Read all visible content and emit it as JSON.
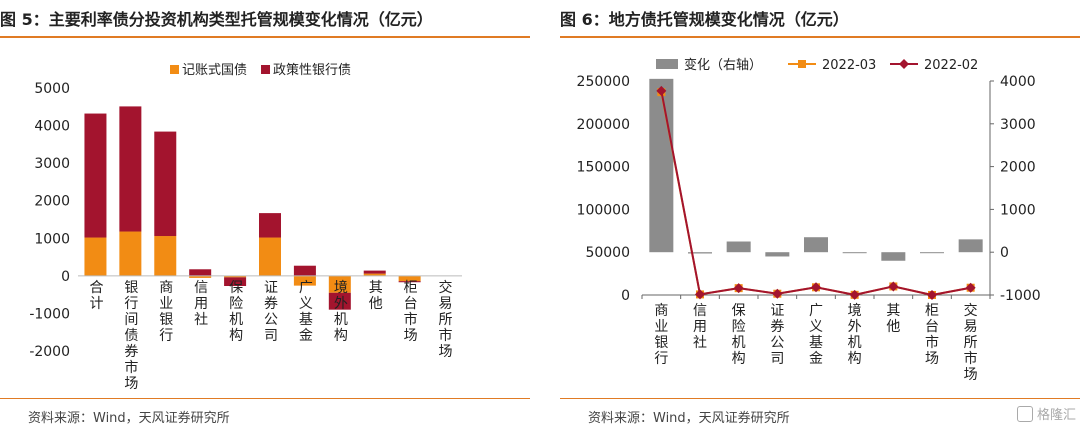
{
  "left": {
    "title": "图 5：主要利率债分投资机构类型托管规模变化情况（亿元）",
    "source": "资料来源：Wind，天风证券研究所",
    "chart_data": {
      "type": "bar",
      "stacked": true,
      "categories": [
        "合计",
        "银行间债券市场",
        "商业银行",
        "信用社",
        "保险机构",
        "证券公司",
        "广义基金",
        "境外机构",
        "其他",
        "柜台市场",
        "交易所市场"
      ],
      "series": [
        {
          "name": "记账式国债",
          "color": "#f28c14",
          "values": [
            1020,
            1180,
            1060,
            -55,
            -40,
            1020,
            -260,
            -450,
            60,
            -140,
            0
          ]
        },
        {
          "name": "政策性银行债",
          "color": "#a3142e",
          "values": [
            3300,
            3330,
            2780,
            175,
            -230,
            650,
            270,
            -450,
            80,
            -30,
            0
          ]
        }
      ],
      "ylim": [
        -2000,
        5000
      ],
      "yticks": [
        -2000,
        -1000,
        0,
        1000,
        2000,
        3000,
        4000,
        5000
      ],
      "legend": "top"
    }
  },
  "right": {
    "title": "图 6：地方债托管规模变化情况（亿元）",
    "source": "资料来源：Wind，天风证券研究所",
    "logo_text": "格隆汇",
    "chart_data": {
      "type": "bar",
      "categories": [
        "商业银行",
        "信用社",
        "保险机构",
        "证券公司",
        "广义基金",
        "境外机构",
        "其他",
        "柜台市场",
        "交易所市场"
      ],
      "series": [
        {
          "name": "变化（右轴）",
          "axis": "right",
          "color": "#8c8c8c",
          "values": [
            4050,
            -30,
            250,
            -100,
            350,
            -20,
            -200,
            -10,
            300
          ]
        },
        {
          "name": "2022-03",
          "axis": "left",
          "type": "line",
          "color": "#f28c14",
          "values": [
            237000,
            700,
            8000,
            1500,
            9000,
            200,
            10000,
            20,
            8500
          ]
        },
        {
          "name": "2022-02",
          "axis": "left",
          "type": "line",
          "color": "#a3142e",
          "values": [
            238500,
            700,
            8000,
            1500,
            9000,
            200,
            10000,
            20,
            8500
          ]
        }
      ],
      "ylim": [
        0,
        250000
      ],
      "yticks": [
        0,
        50000,
        100000,
        150000,
        200000,
        250000
      ],
      "y2lim": [
        -1000,
        4000
      ],
      "y2ticks": [
        -1000,
        0,
        1000,
        2000,
        3000,
        4000
      ],
      "legend": "top"
    }
  }
}
